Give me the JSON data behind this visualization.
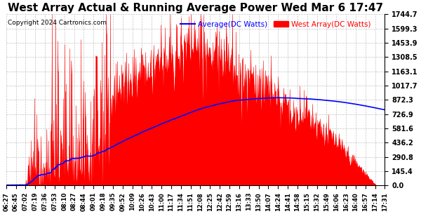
{
  "title": "West Array Actual & Running Average Power Wed Mar 6 17:47",
  "copyright": "Copyright 2024 Cartronics.com",
  "legend_avg": "Average(DC Watts)",
  "legend_west": "West Array(DC Watts)",
  "legend_avg_color": "blue",
  "legend_west_color": "red",
  "ylabel_right_values": [
    0.0,
    145.4,
    290.8,
    436.2,
    581.6,
    726.9,
    872.3,
    1017.7,
    1163.1,
    1308.5,
    1453.9,
    1599.3,
    1744.7
  ],
  "ylim": [
    0,
    1744.7
  ],
  "background_color": "#ffffff",
  "plot_bg_color": "#ffffff",
  "grid_color": "#aaaaaa",
  "fill_color": "red",
  "avg_line_color": "blue",
  "title_fontsize": 11,
  "tick_labels": [
    "06:27",
    "06:45",
    "07:02",
    "07:19",
    "07:36",
    "07:53",
    "08:10",
    "08:27",
    "08:44",
    "09:01",
    "09:18",
    "09:35",
    "09:52",
    "10:09",
    "10:26",
    "10:43",
    "11:00",
    "11:17",
    "11:34",
    "11:51",
    "12:08",
    "12:25",
    "12:42",
    "12:59",
    "13:16",
    "13:33",
    "13:50",
    "14:07",
    "14:24",
    "14:41",
    "14:58",
    "15:15",
    "15:32",
    "15:49",
    "16:06",
    "16:23",
    "16:40",
    "16:57",
    "17:14",
    "17:31"
  ]
}
